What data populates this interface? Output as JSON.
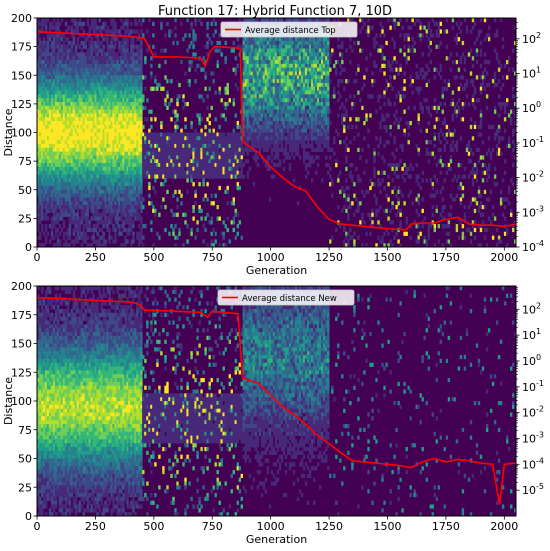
{
  "figure": {
    "title": "Function 17: Hybrid Function 7, 10D"
  },
  "colors": {
    "heat_bg": "#440154",
    "viridis": [
      "#440154",
      "#482878",
      "#3e4989",
      "#31688e",
      "#26828e",
      "#1f9e89",
      "#35b779",
      "#6ece58",
      "#b5de2b",
      "#fde725"
    ],
    "line": "#ff0000",
    "legend_line": "#e31a1c"
  },
  "chart_data": [
    {
      "type": "heatmap",
      "name": "panel-top",
      "xlabel": "Generation",
      "ylabel": "Distance",
      "xlim": [
        0,
        2050
      ],
      "ylim": [
        0,
        200
      ],
      "xticks": [
        0,
        250,
        500,
        750,
        1000,
        1250,
        1500,
        1750,
        2000
      ],
      "yticks": [
        0,
        25,
        50,
        75,
        100,
        125,
        150,
        175,
        200
      ],
      "y2_scale": "log",
      "y2lim_exp": [
        -4,
        2.6
      ],
      "y2ticks": [
        "10^{-4}",
        "10^{-3}",
        "10^{-2}",
        "10^{-1}",
        "10^{0}",
        "10^{1}",
        "10^{2}"
      ],
      "y2ticks_exp": [
        -4,
        -3,
        -2,
        -1,
        0,
        1,
        2
      ],
      "legend": {
        "position": "top-center",
        "label": "Average distance Top"
      },
      "line_series": {
        "name": "Average distance Top",
        "x": [
          0,
          100,
          200,
          300,
          400,
          460,
          500,
          600,
          700,
          720,
          740,
          760,
          850,
          870,
          880,
          950,
          1000,
          1050,
          1100,
          1150,
          1200,
          1250,
          1300,
          1350,
          1400,
          1450,
          1500,
          1580,
          1600,
          1650,
          1700,
          1750,
          1800,
          1850,
          1900,
          1950,
          2000,
          2050
        ],
        "y": [
          188,
          187,
          186,
          185,
          184,
          182,
          166,
          166,
          165,
          158,
          170,
          175,
          174,
          173,
          92,
          82,
          70,
          61,
          53,
          49,
          35,
          24,
          20,
          19,
          18,
          17,
          16,
          15,
          20,
          21,
          21,
          24,
          26,
          20,
          19,
          19,
          18,
          20
        ]
      },
      "bands": [
        {
          "x": [
            0,
            450
          ],
          "profile": "gaussian",
          "center": 100,
          "width": 45,
          "strength": 0.85
        },
        {
          "x": [
            450,
            880
          ],
          "profile": "sparse",
          "center": 120,
          "width": 70,
          "strength": 0.55
        },
        {
          "x": [
            880,
            1250
          ],
          "profile": "noisy",
          "center": 50,
          "width": 45,
          "strength": 0.6
        },
        {
          "x": [
            1250,
            2050
          ],
          "profile": "lines",
          "center": 90,
          "width": 90,
          "strength": 0.45
        }
      ]
    },
    {
      "type": "heatmap",
      "name": "panel-bottom",
      "xlabel": "Generation",
      "ylabel": "Distance",
      "xlim": [
        0,
        2050
      ],
      "ylim": [
        0,
        200
      ],
      "xticks": [
        0,
        250,
        500,
        750,
        1000,
        1250,
        1500,
        1750,
        2000
      ],
      "yticks": [
        0,
        25,
        50,
        75,
        100,
        125,
        150,
        175,
        200
      ],
      "y2_scale": "log",
      "y2lim_exp": [
        -6,
        2.9
      ],
      "y2ticks": [
        "10^{-5}",
        "10^{-4}",
        "10^{-3}",
        "10^{-2}",
        "10^{-1}",
        "10^{0}",
        "10^{1}",
        "10^{2}"
      ],
      "y2ticks_exp": [
        -5,
        -4,
        -3,
        -2,
        -1,
        0,
        1,
        2
      ],
      "legend": {
        "position": "top-center",
        "label": "Average distance New"
      },
      "line_series": {
        "name": "Average distance New",
        "x": [
          0,
          100,
          200,
          300,
          400,
          440,
          460,
          600,
          700,
          730,
          750,
          800,
          850,
          860,
          880,
          950,
          1000,
          1050,
          1100,
          1150,
          1200,
          1250,
          1300,
          1350,
          1400,
          1450,
          1500,
          1550,
          1600,
          1650,
          1700,
          1750,
          1800,
          1850,
          1900,
          1950,
          1980,
          2000,
          2050
        ],
        "y": [
          190,
          189,
          188,
          187,
          186,
          184,
          179,
          178,
          177,
          173,
          178,
          177,
          176,
          176,
          120,
          115,
          105,
          95,
          88,
          80,
          70,
          63,
          55,
          48,
          47,
          46,
          45,
          44,
          42,
          47,
          50,
          47,
          49,
          48,
          46,
          45,
          10,
          45,
          46
        ]
      },
      "bands": [
        {
          "x": [
            0,
            450
          ],
          "profile": "gaussian",
          "center": 105,
          "width": 50,
          "strength": 0.75
        },
        {
          "x": [
            450,
            880
          ],
          "profile": "sparse",
          "center": 115,
          "width": 70,
          "strength": 0.55
        },
        {
          "x": [
            880,
            1250
          ],
          "profile": "noisy",
          "center": 60,
          "width": 60,
          "strength": 0.4
        },
        {
          "x": [
            1250,
            2050
          ],
          "profile": "speckle",
          "center": 90,
          "width": 100,
          "strength": 0.3
        }
      ]
    }
  ]
}
